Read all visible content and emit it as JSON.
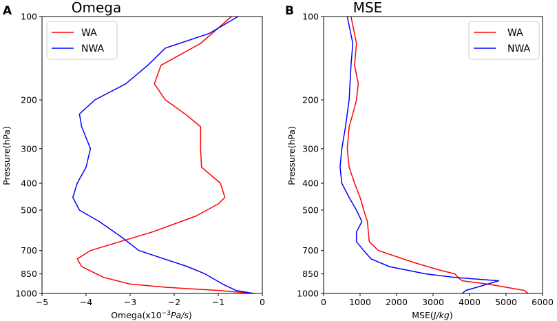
{
  "chart_data": [
    {
      "type": "line",
      "panel_label": "A",
      "title": "Omega",
      "xlabel_prefix": "Omega(x10",
      "xlabel_exp": "−3",
      "xlabel_unit": "Pa/s",
      "xlabel_suffix": ")",
      "ylabel": "Pressure(hPa)",
      "xlim": [
        -5,
        0
      ],
      "ylim": [
        1000,
        100
      ],
      "yscale": "log",
      "xticks": [
        -5,
        -4,
        -3,
        -2,
        -1,
        0
      ],
      "xtick_labels": [
        "−5",
        "−4",
        "−3",
        "−2",
        "−1",
        "0"
      ],
      "yticks": [
        100,
        200,
        300,
        400,
        500,
        700,
        850,
        1000
      ],
      "ytick_labels": [
        "100",
        "200",
        "300",
        "400",
        "500",
        "700",
        "850",
        "1000"
      ],
      "legend_position": "top-left",
      "series": [
        {
          "name": "WA",
          "color": "#ff0000",
          "points": [
            [
              -0.7,
              100
            ],
            [
              -1.4,
              125
            ],
            [
              -2.3,
              150
            ],
            [
              -2.45,
              175
            ],
            [
              -2.2,
              200
            ],
            [
              -1.75,
              225
            ],
            [
              -1.4,
              250
            ],
            [
              -1.4,
              300
            ],
            [
              -1.38,
              350
            ],
            [
              -0.95,
              400
            ],
            [
              -0.85,
              450
            ],
            [
              -1.0,
              475
            ],
            [
              -1.5,
              525
            ],
            [
              -2.5,
              600
            ],
            [
              -3.9,
              700
            ],
            [
              -4.2,
              750
            ],
            [
              -4.1,
              800
            ],
            [
              -3.6,
              875
            ],
            [
              -3.0,
              925
            ],
            [
              -2.2,
              950
            ],
            [
              -1.0,
              975
            ],
            [
              -0.2,
              1000
            ]
          ]
        },
        {
          "name": "NWA",
          "color": "#0000ff",
          "points": [
            [
              -0.55,
              100
            ],
            [
              -1.2,
              115
            ],
            [
              -2.2,
              130
            ],
            [
              -2.6,
              150
            ],
            [
              -3.1,
              175
            ],
            [
              -3.8,
              200
            ],
            [
              -4.15,
              225
            ],
            [
              -4.1,
              250
            ],
            [
              -3.9,
              300
            ],
            [
              -4.0,
              350
            ],
            [
              -4.2,
              400
            ],
            [
              -4.3,
              450
            ],
            [
              -4.15,
              500
            ],
            [
              -3.7,
              550
            ],
            [
              -3.2,
              625
            ],
            [
              -2.8,
              700
            ],
            [
              -1.7,
              800
            ],
            [
              -1.3,
              850
            ],
            [
              -0.9,
              925
            ],
            [
              -0.6,
              975
            ],
            [
              -0.2,
              1000
            ]
          ]
        }
      ]
    },
    {
      "type": "line",
      "panel_label": "B",
      "title": "MSE",
      "xlabel_prefix": "MSE(",
      "xlabel_unit": "J/kg",
      "xlabel_suffix": ")",
      "ylabel": "Pressure(hPa)",
      "xlim": [
        0,
        6000
      ],
      "ylim": [
        1000,
        100
      ],
      "yscale": "log",
      "xticks": [
        0,
        1000,
        2000,
        3000,
        4000,
        5000,
        6000
      ],
      "xtick_labels": [
        "0",
        "1000",
        "2000",
        "3000",
        "4000",
        "5000",
        "6000"
      ],
      "yticks": [
        100,
        200,
        300,
        400,
        500,
        700,
        850,
        1000
      ],
      "ytick_labels": [
        "100",
        "200",
        "300",
        "400",
        "500",
        "700",
        "850",
        "1000"
      ],
      "legend_position": "top-right",
      "series": [
        {
          "name": "WA",
          "color": "#ff0000",
          "points": [
            [
              750,
              100
            ],
            [
              900,
              125
            ],
            [
              850,
              150
            ],
            [
              950,
              175
            ],
            [
              900,
              200
            ],
            [
              800,
              225
            ],
            [
              700,
              250
            ],
            [
              650,
              300
            ],
            [
              700,
              350
            ],
            [
              850,
              400
            ],
            [
              1000,
              450
            ],
            [
              1100,
              500
            ],
            [
              1200,
              550
            ],
            [
              1250,
              650
            ],
            [
              1500,
              700
            ],
            [
              2500,
              775
            ],
            [
              3200,
              825
            ],
            [
              3600,
              850
            ],
            [
              3700,
              880
            ],
            [
              3800,
              900
            ],
            [
              4500,
              925
            ],
            [
              5500,
              975
            ],
            [
              5600,
              1000
            ]
          ]
        },
        {
          "name": "NWA",
          "color": "#0000ff",
          "points": [
            [
              650,
              100
            ],
            [
              800,
              125
            ],
            [
              750,
              150
            ],
            [
              700,
              200
            ],
            [
              600,
              250
            ],
            [
              500,
              300
            ],
            [
              450,
              350
            ],
            [
              500,
              400
            ],
            [
              700,
              450
            ],
            [
              900,
              500
            ],
            [
              1050,
              550
            ],
            [
              900,
              600
            ],
            [
              900,
              650
            ],
            [
              1100,
              700
            ],
            [
              1300,
              750
            ],
            [
              1800,
              800
            ],
            [
              2800,
              850
            ],
            [
              3600,
              875
            ],
            [
              4800,
              900
            ],
            [
              3900,
              975
            ],
            [
              3800,
              1000
            ]
          ]
        }
      ]
    }
  ]
}
